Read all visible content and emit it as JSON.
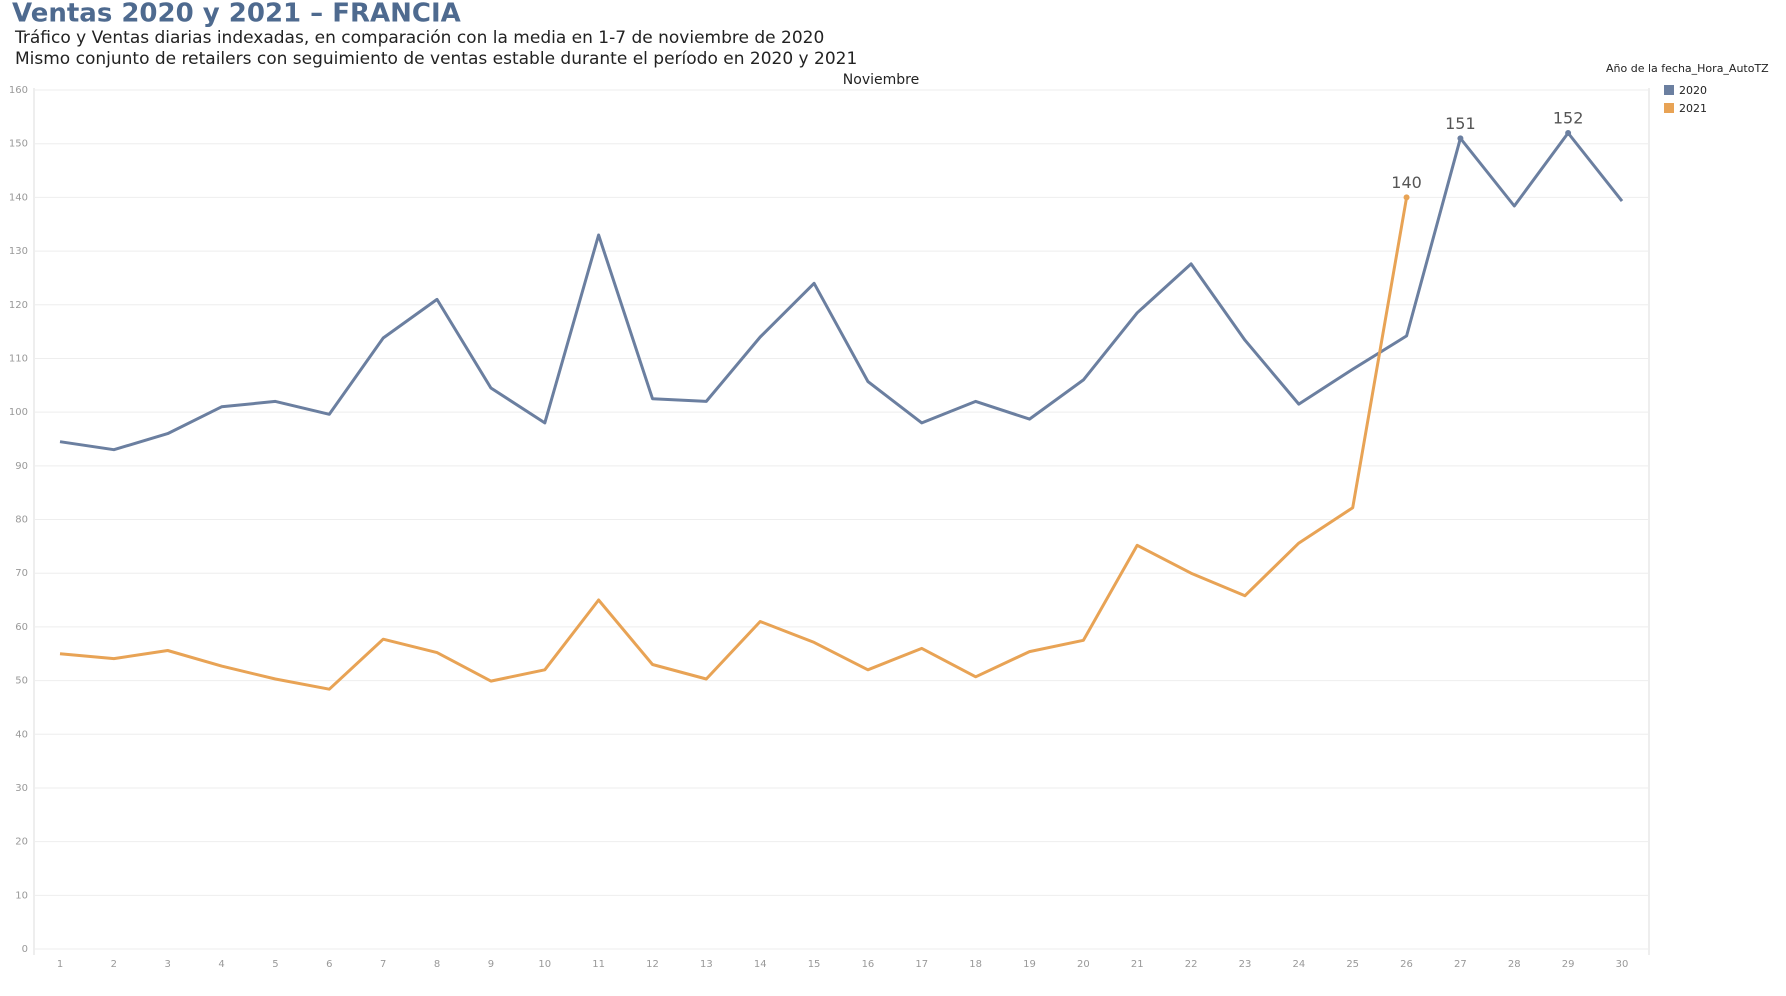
{
  "chart_data": {
    "type": "line",
    "title": "Ventas 2020 y 2021 – FRANCIA",
    "subtitle": [
      "Tráfico y Ventas diarias indexadas, en comparación con la media en 1-7 de noviembre de 2020",
      "Mismo conjunto de retailers con seguimiento de ventas estable durante el período en 2020 y 2021"
    ],
    "x_label": "Noviembre",
    "legend_title": "Año de la fecha_Hora_AutoTZ",
    "categories": [
      "1",
      "2",
      "3",
      "4",
      "5",
      "6",
      "7",
      "8",
      "9",
      "10",
      "11",
      "12",
      "13",
      "14",
      "15",
      "16",
      "17",
      "18",
      "19",
      "20",
      "21",
      "22",
      "23",
      "24",
      "25",
      "26",
      "27",
      "28",
      "29",
      "30"
    ],
    "series": [
      {
        "name": "2020",
        "color": "#6b7fa0",
        "values": [
          94.5,
          93,
          96,
          101,
          102,
          99.6,
          113.8,
          121,
          104.5,
          98,
          133,
          102.5,
          102,
          114,
          124,
          105.7,
          98,
          102,
          98.7,
          106,
          118.5,
          127.6,
          113.4,
          101.5,
          108,
          114.2,
          151,
          138.4,
          152,
          139.3
        ],
        "value_labels": [
          null,
          null,
          null,
          null,
          null,
          null,
          null,
          null,
          null,
          null,
          null,
          null,
          null,
          null,
          null,
          null,
          null,
          null,
          null,
          null,
          null,
          null,
          null,
          null,
          null,
          null,
          "151",
          null,
          "152",
          null
        ]
      },
      {
        "name": "2021",
        "color": "#e8a355",
        "values": [
          55,
          54.1,
          55.6,
          52.7,
          50.3,
          48.4,
          57.7,
          55.2,
          49.9,
          52,
          65,
          53,
          50.3,
          61,
          57.1,
          52,
          56,
          50.7,
          55.4,
          57.5,
          75.2,
          70,
          65.8,
          75.6,
          82.2,
          140,
          null,
          null,
          null,
          null
        ],
        "value_labels": [
          null,
          null,
          null,
          null,
          null,
          null,
          null,
          null,
          null,
          null,
          null,
          null,
          null,
          null,
          null,
          null,
          null,
          null,
          null,
          null,
          null,
          null,
          null,
          null,
          null,
          "140",
          null,
          null,
          null,
          null
        ]
      }
    ],
    "ylim": [
      0,
      160
    ],
    "yticks": [
      0,
      10,
      20,
      30,
      40,
      50,
      60,
      70,
      80,
      90,
      100,
      110,
      120,
      130,
      140,
      150,
      160
    ],
    "grid": true,
    "legend": "upper right"
  }
}
